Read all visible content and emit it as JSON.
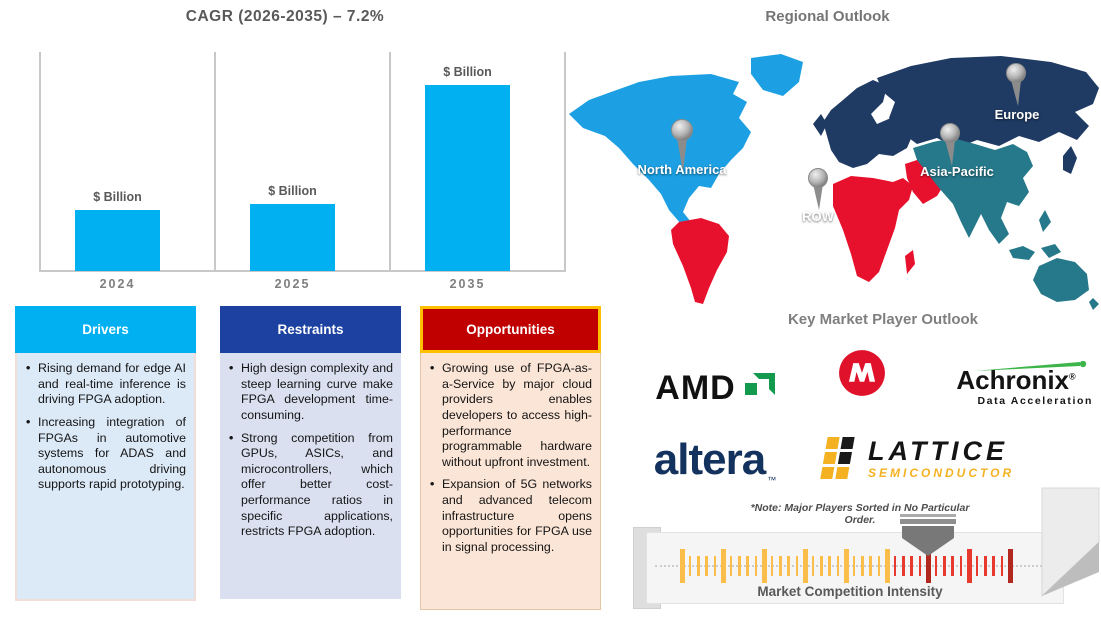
{
  "header": {
    "chart_title": "CAGR (2026-2035) – 7.2%",
    "regional_title": "Regional Outlook",
    "players_title": "Key Market Player Outlook"
  },
  "chart_data": {
    "type": "bar",
    "title": "CAGR (2026-2035) – 7.2%",
    "categories": [
      "2024",
      "2025",
      "2035"
    ],
    "value_labels": [
      "$ Billion",
      "$ Billion",
      "$ Billion"
    ],
    "relative_heights": [
      0.28,
      0.305,
      0.85
    ],
    "bar_color": "#00B0F0",
    "ylabel": "$ Billion",
    "grid": false,
    "note": "numeric values not shown; bars labeled $ Billion only"
  },
  "map": {
    "labels": {
      "north_america": "North America",
      "row": "ROW",
      "asia_pacific": "Asia-Pacific",
      "europe": "Europe"
    },
    "region_colors": {
      "north_america": "#1CA0E3",
      "europe_russia": "#1F3A63",
      "asia_pacific": "#26798B",
      "row_red": "#E8112D"
    }
  },
  "boxes": [
    {
      "title": "Drivers",
      "header_color": "#00B0F0",
      "body_color": "#DCE9F7",
      "bullets": [
        "Rising demand for edge AI and real-time inference is driving FPGA adoption.",
        "Increasing integration of FPGAs in automotive systems for ADAS and autonomous driving supports rapid prototyping."
      ]
    },
    {
      "title": "Restraints",
      "header_color": "#1C41A0",
      "body_color": "#DAE0F0",
      "bullets": [
        "High design complexity and steep learning curve make FPGA development time-consuming.",
        "Strong competition from GPUs, ASICs, and microcontrollers, which offer better cost-performance ratios in specific applications, restricts FPGA adoption."
      ]
    },
    {
      "title": "Opportunities",
      "header_color": "#C00000",
      "body_color": "#FBE5D6",
      "bullets": [
        "Growing use of FPGA-as-a-Service by major cloud providers enables developers to access high-performance programmable hardware without upfront investment.",
        "Expansion of 5G networks and advanced telecom infrastructure opens opportunities for FPGA use in signal processing."
      ]
    }
  ],
  "logos": {
    "amd": {
      "text": "AMD"
    },
    "microchip": {
      "letter": "M"
    },
    "achronix": {
      "text": "Achronix",
      "reg": "®",
      "tagline": "Data Acceleration"
    },
    "altera": {
      "text": "altera",
      "tm": "™"
    },
    "lattice": {
      "text": "LATTICE",
      "sub": "SEMICONDUCTOR"
    }
  },
  "gauge": {
    "note": "*Note: Major Players Sorted in No Particular Order.",
    "label": "Market Competition Intensity",
    "tick_count": 41,
    "major_every": 5,
    "yellow_through_index": 25,
    "dark_red_indices": [
      30,
      40
    ],
    "pointer_index": 30,
    "colors": {
      "yellow": "#FBBE4B",
      "red": "#E8392E",
      "dark_red": "#B3281E"
    }
  }
}
